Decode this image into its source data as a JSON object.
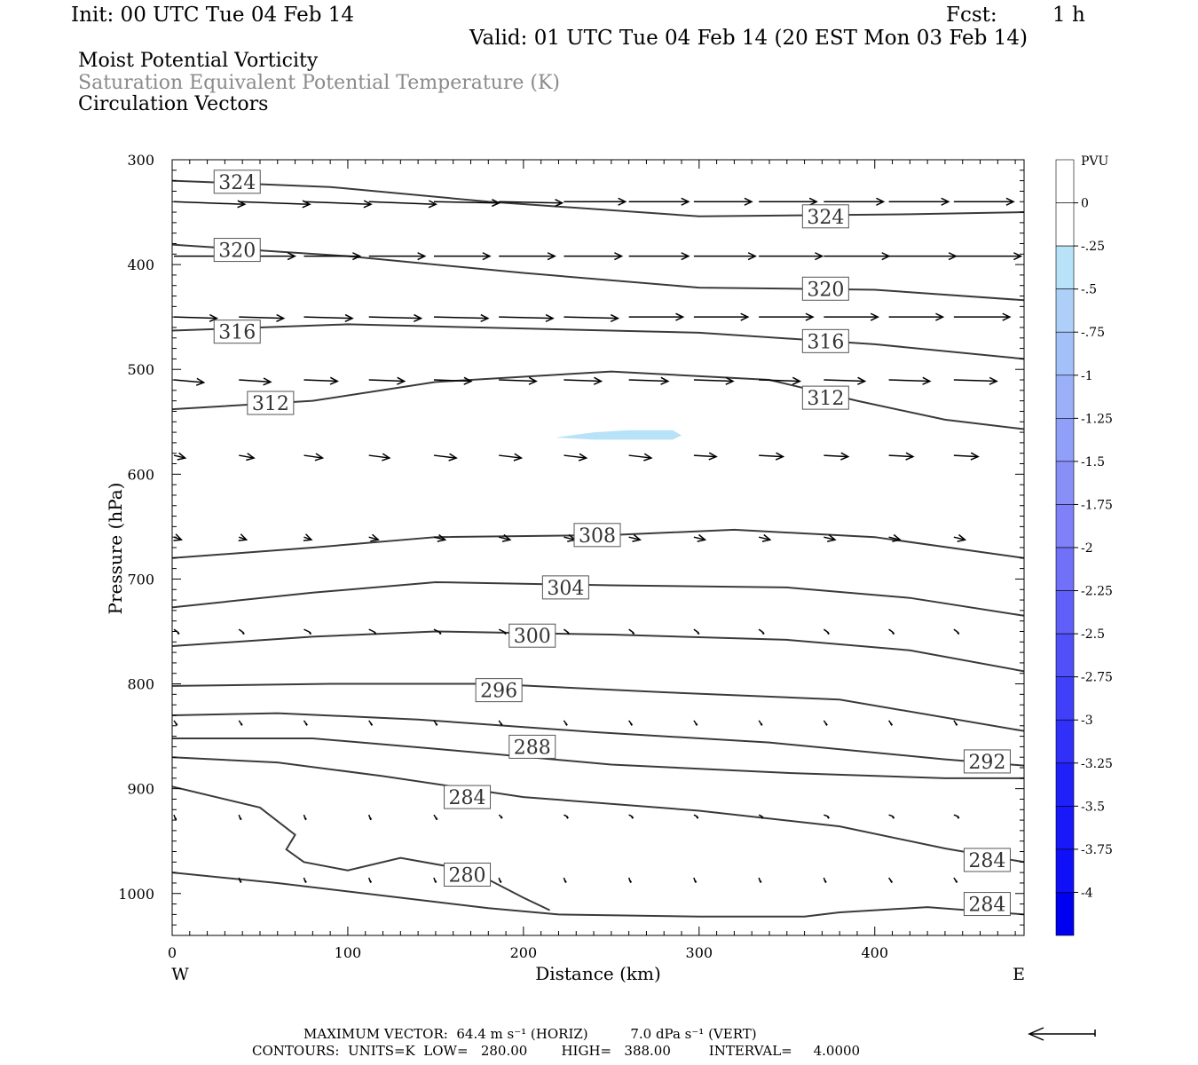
{
  "header": {
    "init": "Init: 00 UTC Tue 04 Feb 14",
    "fcst_label": "Fcst:",
    "fcst_value": "1 h",
    "valid": "Valid: 01 UTC Tue 04 Feb 14 (20 EST Mon 03 Feb 14)",
    "fields": [
      "Moist Potential Vorticity",
      "Saturation Equivalent Potential Temperature (K)",
      "Circulation Vectors"
    ]
  },
  "footer": {
    "max_vector_line": "MAXIMUM VECTOR:  64.4 m s⁻¹ (HORIZ)          7.0 dPa s⁻¹ (VERT)",
    "contours_line": "CONTOURS:  UNITS=K  LOW=   280.00        HIGH=   388.00         INTERVAL=     4.0000"
  },
  "colors": {
    "contour": "#3a3a3a",
    "pv_fill": "#b8e2f8",
    "frame": "#000000"
  },
  "colorbar": {
    "unit": "PVU",
    "labels": [
      "0",
      "-.25",
      "-.5",
      "-.75",
      "-1",
      "-1.25",
      "-1.5",
      "-1.75",
      "-2",
      "-2.25",
      "-2.5",
      "-2.75",
      "-3",
      "-3.25",
      "-3.5",
      "-3.75",
      "-4"
    ],
    "colors": [
      "#ffffff",
      "#ffffff",
      "#b8e2f8",
      "#aed0f8",
      "#a4c0f8",
      "#9ab0f8",
      "#90a0f8",
      "#8890f8",
      "#8080f8",
      "#7070f8",
      "#6060f8",
      "#5050f8",
      "#4040f8",
      "#3030f8",
      "#2020f8",
      "#1818f8",
      "#1010f8",
      "#0000f0"
    ]
  },
  "chart_data": {
    "type": "contour",
    "xlabel": "Distance (km)",
    "ylabel": "Pressure (hPa)",
    "xlim": [
      0,
      485
    ],
    "ylim": [
      300,
      1040
    ],
    "x_ticks": [
      0,
      100,
      200,
      300,
      400
    ],
    "y_ticks": [
      300,
      400,
      500,
      600,
      700,
      800,
      900,
      1000
    ],
    "x_left_end": "W",
    "x_right_end": "E",
    "contour_units": "K",
    "contour_interval": 4,
    "contours": [
      {
        "value": 324,
        "x": [
          0,
          90,
          180,
          300,
          420,
          485
        ],
        "p": [
          320,
          326,
          340,
          354,
          352,
          350
        ]
      },
      {
        "value": 320,
        "x": [
          0,
          100,
          200,
          300,
          400,
          485
        ],
        "p": [
          381,
          392,
          408,
          422,
          424,
          434
        ]
      },
      {
        "value": 316,
        "x": [
          0,
          100,
          200,
          300,
          400,
          485
        ],
        "p": [
          463,
          457,
          461,
          465,
          476,
          490
        ]
      },
      {
        "value": 312,
        "x": [
          0,
          80,
          150,
          250,
          340,
          390,
          440,
          485
        ],
        "p": [
          538,
          530,
          512,
          502,
          510,
          530,
          548,
          557
        ]
      },
      {
        "value": 308,
        "x": [
          0,
          80,
          150,
          250,
          320,
          400,
          485
        ],
        "p": [
          680,
          670,
          660,
          658,
          653,
          660,
          680
        ]
      },
      {
        "value": 304,
        "x": [
          0,
          80,
          150,
          250,
          350,
          420,
          485
        ],
        "p": [
          727,
          713,
          703,
          706,
          708,
          718,
          735
        ]
      },
      {
        "value": 300,
        "x": [
          0,
          80,
          150,
          250,
          350,
          420,
          485
        ],
        "p": [
          764,
          755,
          750,
          753,
          758,
          768,
          788
        ]
      },
      {
        "value": 296,
        "x": [
          0,
          90,
          180,
          280,
          380,
          485
        ],
        "p": [
          802,
          800,
          800,
          808,
          815,
          845
        ]
      },
      {
        "value": 292,
        "x": [
          0,
          60,
          140,
          240,
          340,
          440,
          485
        ],
        "p": [
          830,
          828,
          834,
          846,
          856,
          872,
          878
        ]
      },
      {
        "value": 288,
        "x": [
          0,
          80,
          150,
          250,
          350,
          440,
          485
        ],
        "p": [
          852,
          852,
          862,
          877,
          885,
          890,
          890
        ]
      },
      {
        "value": 284,
        "x": [
          0,
          60,
          120,
          200,
          300,
          380,
          440,
          485
        ],
        "p": [
          870,
          875,
          888,
          908,
          921,
          936,
          957,
          970
        ]
      },
      {
        "value": 280,
        "x": [
          0,
          50,
          70,
          65,
          75,
          100,
          130,
          170,
          200,
          215
        ],
        "p": [
          898,
          918,
          944,
          958,
          970,
          978,
          966,
          978,
          1004,
          1016
        ]
      },
      {
        "value": 284,
        "x": [
          0,
          60,
          120,
          180,
          220,
          300,
          360,
          380,
          430,
          485
        ],
        "p": [
          980,
          990,
          1002,
          1014,
          1020,
          1022,
          1022,
          1018,
          1013,
          1020
        ]
      }
    ],
    "contour_labels": [
      {
        "text": "324",
        "x": 37,
        "p": 321
      },
      {
        "text": "324",
        "x": 372,
        "p": 354
      },
      {
        "text": "320",
        "x": 37,
        "p": 386
      },
      {
        "text": "320",
        "x": 372,
        "p": 423
      },
      {
        "text": "316",
        "x": 37,
        "p": 464
      },
      {
        "text": "316",
        "x": 372,
        "p": 473
      },
      {
        "text": "312",
        "x": 56,
        "p": 532
      },
      {
        "text": "312",
        "x": 372,
        "p": 527
      },
      {
        "text": "308",
        "x": 242,
        "p": 658
      },
      {
        "text": "304",
        "x": 224,
        "p": 708
      },
      {
        "text": "300",
        "x": 205,
        "p": 754
      },
      {
        "text": "296",
        "x": 186,
        "p": 806
      },
      {
        "text": "288",
        "x": 205,
        "p": 860
      },
      {
        "text": "292",
        "x": 464,
        "p": 874
      },
      {
        "text": "284",
        "x": 168,
        "p": 908
      },
      {
        "text": "280",
        "x": 168,
        "p": 982
      },
      {
        "text": "284",
        "x": 464,
        "p": 968
      },
      {
        "text": "284",
        "x": 464,
        "p": 1010
      }
    ],
    "pv_region": {
      "level": "-0.25 to -0.5 PVU",
      "x": [
        218,
        240,
        260,
        285,
        290,
        285,
        262,
        240,
        218
      ],
      "p": [
        565,
        560,
        558,
        558,
        563,
        567,
        567,
        567,
        565
      ]
    },
    "vectors": [
      {
        "p": 340,
        "x": [
          0,
          37,
          74,
          111,
          148,
          185,
          222,
          259,
          296,
          333,
          370,
          407,
          444
        ],
        "u": [
          38,
          38,
          36,
          36,
          35,
          34,
          33,
          32,
          31,
          31,
          32,
          32,
          32
        ],
        "w": [
          -1,
          -1,
          -1,
          -1,
          -0.5,
          -0.5,
          0,
          0,
          0,
          0,
          0,
          0,
          0
        ]
      },
      {
        "p": 392,
        "x": [
          0,
          37,
          74,
          111,
          148,
          185,
          222,
          259,
          296,
          333,
          370,
          407,
          444
        ],
        "u": [
          30,
          30,
          30,
          30,
          30,
          30,
          31,
          32,
          33,
          34,
          35,
          36,
          36
        ],
        "w": [
          0,
          0,
          0,
          0,
          0,
          0,
          0,
          0,
          0,
          0,
          0,
          0,
          0
        ]
      },
      {
        "p": 450,
        "x": [
          0,
          37,
          74,
          111,
          148,
          185,
          222,
          259,
          296,
          333,
          370,
          407,
          444
        ],
        "u": [
          23,
          24,
          26,
          28,
          29,
          29,
          29,
          29,
          29,
          29,
          29,
          29,
          30
        ],
        "w": [
          -0.5,
          -0.5,
          -0.5,
          -0.5,
          -0.5,
          -0.5,
          -0.5,
          0,
          0,
          0,
          0,
          0,
          0
        ]
      },
      {
        "p": 510,
        "x": [
          0,
          37,
          74,
          111,
          148,
          185,
          222,
          259,
          296,
          333,
          370,
          407,
          444
        ],
        "u": [
          16,
          17,
          18,
          19,
          20,
          20,
          20,
          21,
          21,
          22,
          22,
          22,
          23
        ],
        "w": [
          -1,
          -0.8,
          -0.5,
          -0.5,
          -0.5,
          -0.5,
          -0.5,
          -0.5,
          -0.5,
          -0.5,
          -0.5,
          -0.5,
          -0.5
        ]
      },
      {
        "p": 582,
        "x": [
          0,
          37,
          74,
          111,
          148,
          185,
          222,
          259,
          296,
          333,
          370,
          407,
          444
        ],
        "u": [
          6,
          8,
          10,
          11,
          12,
          12,
          12,
          12,
          12,
          13,
          13,
          13,
          13
        ],
        "w": [
          -1,
          -1,
          -1,
          -1,
          -1,
          -1,
          -1,
          -1,
          -0.5,
          -0.5,
          -0.5,
          -0.5,
          -0.5
        ]
      },
      {
        "p": 660,
        "x": [
          0,
          37,
          74,
          111,
          148,
          185,
          222,
          259,
          296,
          333,
          370,
          407,
          444
        ],
        "u": [
          4,
          4,
          4,
          5,
          6,
          6,
          6,
          6,
          6,
          6,
          6,
          6,
          6
        ],
        "w": [
          -1,
          -1,
          -1,
          -1,
          -1,
          -1,
          -1,
          -1,
          -1,
          -1,
          -1,
          -1,
          -1
        ]
      },
      {
        "p": 748,
        "x": [
          0,
          37,
          74,
          111,
          148,
          185,
          222,
          259,
          296,
          333,
          370,
          407,
          444
        ],
        "u": [
          2,
          2,
          3,
          3,
          3,
          3,
          2,
          2,
          2,
          2,
          2,
          2,
          2
        ],
        "w": [
          -1,
          -1,
          -1,
          -1,
          -1,
          -1,
          -1,
          -1,
          -1,
          -1,
          -1,
          -1,
          -1
        ]
      },
      {
        "p": 835,
        "x": [
          0,
          37,
          74,
          111,
          148,
          185,
          222,
          259,
          296,
          333,
          370,
          407,
          444
        ],
        "u": [
          1,
          1,
          1,
          1,
          1,
          1,
          1,
          1,
          1,
          1,
          1,
          1,
          1
        ],
        "w": [
          -1,
          -1,
          -1,
          -1,
          -1,
          -1,
          -1,
          -1,
          -1,
          -1,
          -1,
          -1,
          -1
        ]
      },
      {
        "p": 925,
        "x": [
          0,
          37,
          74,
          111,
          148,
          185,
          222,
          259,
          296,
          333,
          370,
          407,
          444
        ],
        "u": [
          0.5,
          0.5,
          0.5,
          0.5,
          1,
          1,
          1.5,
          1.5,
          1.5,
          1.5,
          2,
          2,
          2
        ],
        "w": [
          -1,
          -1,
          -1,
          -1,
          -1,
          -0.5,
          -0.5,
          -0.5,
          -0.5,
          -0.5,
          -0.5,
          -0.5,
          -0.5
        ]
      },
      {
        "p": 985,
        "x": [
          37,
          74,
          111,
          148,
          185,
          222,
          259,
          296,
          333,
          370,
          407,
          444
        ],
        "u": [
          0.5,
          0.5,
          0.5,
          0.5,
          0.5,
          0.5,
          0.5,
          0.5,
          0.5,
          0.5,
          1,
          1
        ],
        "w": [
          -1,
          -1,
          -1,
          -1,
          -1,
          -1,
          -1,
          -1,
          -1,
          -1,
          -1,
          -1
        ]
      }
    ]
  }
}
